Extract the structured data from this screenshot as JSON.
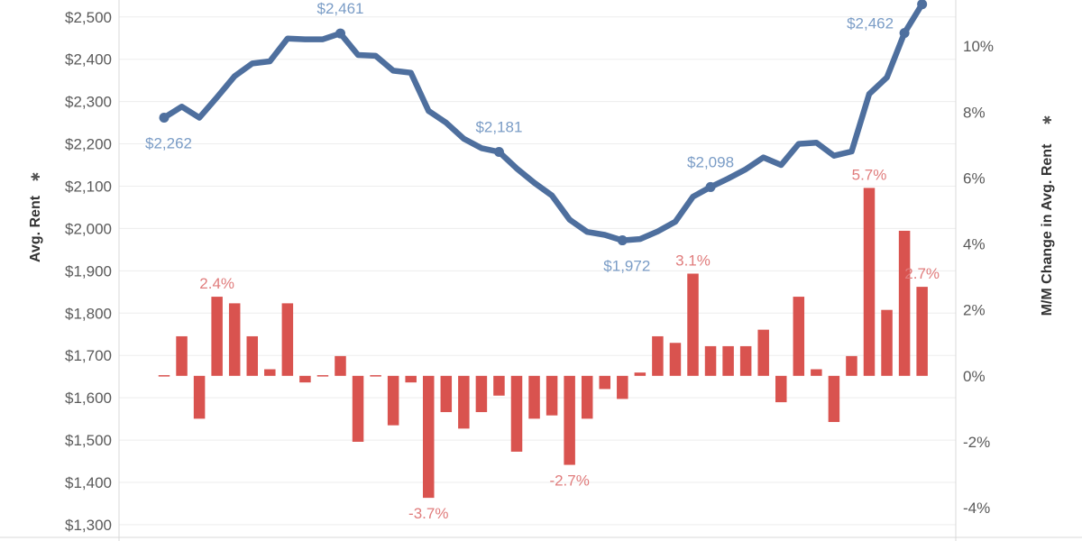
{
  "chart_data": {
    "type": "bar-line-dual-axis",
    "title": "",
    "colors": {
      "line": "#4e6f9e",
      "bar": "#d9534f",
      "line_label": "#7a9cc6",
      "bar_label": "#e07c7c"
    },
    "y_left": {
      "label": "Avg. Rent",
      "label_icon": "filter-star-icon",
      "range": [
        1270,
        2540
      ],
      "ticks": [
        {
          "v": 1300,
          "t": "$1,300"
        },
        {
          "v": 1400,
          "t": "$1,400"
        },
        {
          "v": 1500,
          "t": "$1,500"
        },
        {
          "v": 1600,
          "t": "$1,600"
        },
        {
          "v": 1700,
          "t": "$1,700"
        },
        {
          "v": 1800,
          "t": "$1,800"
        },
        {
          "v": 1900,
          "t": "$1,900"
        },
        {
          "v": 2000,
          "t": "$2,000"
        },
        {
          "v": 2100,
          "t": "$2,100"
        },
        {
          "v": 2200,
          "t": "$2,200"
        },
        {
          "v": 2300,
          "t": "$2,300"
        },
        {
          "v": 2400,
          "t": "$2,400"
        },
        {
          "v": 2500,
          "t": "$2,500"
        }
      ]
    },
    "y_right": {
      "label": "M/M Change in Avg. Rent",
      "label_icon": "filter-star-icon",
      "range": [
        -4.9,
        11.4
      ],
      "ticks": [
        {
          "v": -4,
          "t": "-4%"
        },
        {
          "v": -2,
          "t": "-2%"
        },
        {
          "v": 0,
          "t": "0%"
        },
        {
          "v": 2,
          "t": "2%"
        },
        {
          "v": 4,
          "t": "4%"
        },
        {
          "v": 6,
          "t": "6%"
        },
        {
          "v": 8,
          "t": "8%"
        },
        {
          "v": 10,
          "t": "10%"
        }
      ]
    },
    "series": [
      {
        "kind": "line",
        "axis": "left",
        "values": [
          2262,
          2288,
          2262,
          2310,
          2360,
          2390,
          2395,
          2449,
          2447,
          2447,
          2461,
          2410,
          2408,
          2373,
          2368,
          2278,
          2250,
          2212,
          2190,
          2181,
          2142,
          2108,
          2078,
          2021,
          1992,
          1985,
          1972,
          1975,
          1993,
          2016,
          2075,
          2098,
          2118,
          2140,
          2168,
          2150,
          2200,
          2203,
          2172,
          2182,
          2318,
          2357,
          2462,
          2530
        ]
      },
      {
        "kind": "bar",
        "axis": "right",
        "values": [
          0.0,
          1.2,
          -1.3,
          2.4,
          2.2,
          1.2,
          0.2,
          2.2,
          -0.2,
          0.0,
          0.6,
          -2.0,
          0.0,
          -1.5,
          -0.2,
          -3.7,
          -1.1,
          -1.6,
          -1.1,
          -0.6,
          -2.3,
          -1.3,
          -1.2,
          -2.7,
          -1.3,
          -0.4,
          -0.7,
          0.1,
          1.2,
          1.0,
          3.1,
          0.9,
          0.9,
          0.9,
          1.4,
          -0.8,
          2.4,
          0.2,
          -1.4,
          0.6,
          5.7,
          2.0,
          4.4,
          2.7
        ]
      }
    ],
    "line_labels": [
      {
        "i": 0,
        "t": "$2,262",
        "pos": "below"
      },
      {
        "i": 10,
        "t": "$2,461",
        "pos": "above"
      },
      {
        "i": 19,
        "t": "$2,181",
        "pos": "above"
      },
      {
        "i": 26,
        "t": "$1,972",
        "pos": "below"
      },
      {
        "i": 31,
        "t": "$2,098",
        "pos": "above"
      },
      {
        "i": 42,
        "t": "$2,462",
        "pos": "left"
      }
    ],
    "bar_labels": [
      {
        "i": 3,
        "t": "2.4%"
      },
      {
        "i": 15,
        "t": "-3.7%"
      },
      {
        "i": 23,
        "t": "-2.7%"
      },
      {
        "i": 30,
        "t": "3.1%"
      },
      {
        "i": 40,
        "t": "5.7%"
      },
      {
        "i": 43,
        "t": "2.7%"
      }
    ],
    "grid": true,
    "legend": "none"
  }
}
